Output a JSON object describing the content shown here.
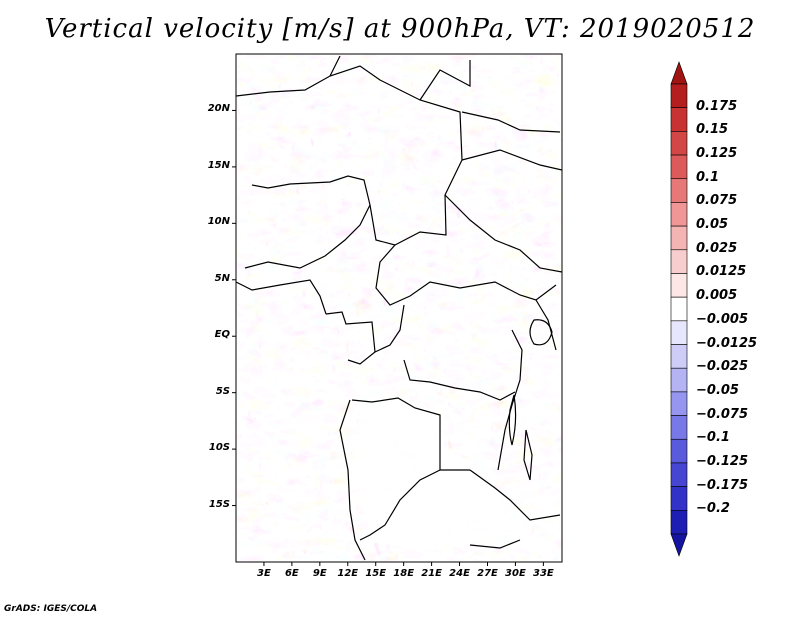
{
  "title": "Vertical velocity [m/s] at 900hPa, VT: 2019020512",
  "credit": "GrADS: IGES/COLA",
  "map": {
    "lat_labels": [
      "20N",
      "15N",
      "10N",
      "5N",
      "EQ",
      "5S",
      "10S",
      "15S"
    ],
    "lat_values": [
      20,
      15,
      10,
      5,
      0,
      -5,
      -10,
      -15
    ],
    "lon_labels": [
      "3E",
      "6E",
      "9E",
      "12E",
      "15E",
      "18E",
      "21E",
      "24E",
      "27E",
      "30E",
      "33E"
    ],
    "lon_values": [
      3,
      6,
      9,
      12,
      15,
      18,
      21,
      24,
      27,
      30,
      33
    ],
    "lat_range": [
      -20,
      25
    ],
    "lon_range": [
      0,
      35
    ],
    "field": "vertical velocity",
    "level": "900hPa",
    "valid_time": "2019020512"
  },
  "colorbar": {
    "labels": [
      "0.175",
      "0.15",
      "0.125",
      "0.1",
      "0.075",
      "0.05",
      "0.025",
      "0.0125",
      "0.005",
      "−0.005",
      "−0.0125",
      "−0.025",
      "−0.05",
      "−0.075",
      "−0.1",
      "−0.125",
      "−0.175",
      "−0.2"
    ],
    "colors": [
      "#b41e1e",
      "#c83232",
      "#d24646",
      "#dc5a5a",
      "#e67878",
      "#f09696",
      "#f5b4b4",
      "#f8cdcd",
      "#fce6e6",
      "#ffffff",
      "#e6e6fc",
      "#cdcdf8",
      "#b4b4f5",
      "#9696f0",
      "#7878e6",
      "#5a5adc",
      "#4646d2",
      "#3232c8",
      "#1e1eb4"
    ],
    "top_arrow_color": "#a01414",
    "bottom_arrow_color": "#1414a0"
  }
}
